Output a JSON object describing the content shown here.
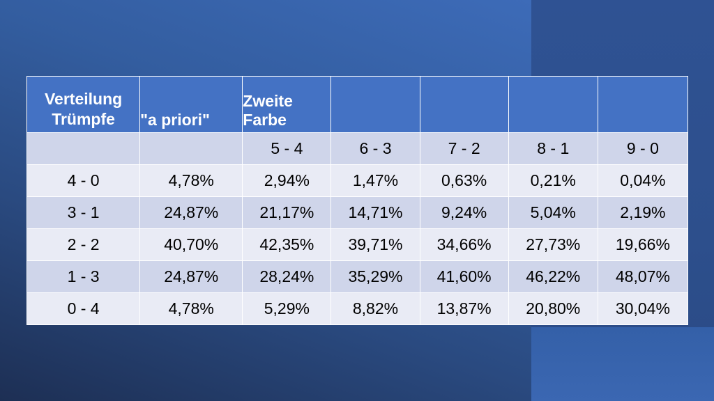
{
  "table": {
    "header": {
      "col0_line1": "Verteilung",
      "col0_line2": "Trümpfe",
      "col1": "\"a priori\"",
      "col2": "Zweite Farbe"
    },
    "subheader": [
      "",
      "",
      "5 - 4",
      "6 - 3",
      "7 - 2",
      "8 - 1",
      "9 - 0"
    ],
    "rows": [
      [
        "4 - 0",
        "4,78%",
        "2,94%",
        "1,47%",
        "0,63%",
        "0,21%",
        "0,04%"
      ],
      [
        "3 - 1",
        "24,87%",
        "21,17%",
        "14,71%",
        "9,24%",
        "5,04%",
        "2,19%"
      ],
      [
        "2 - 2",
        "40,70%",
        "42,35%",
        "39,71%",
        "34,66%",
        "27,73%",
        "19,66%"
      ],
      [
        "1 - 3",
        "24,87%",
        "28,24%",
        "35,29%",
        "41,60%",
        "46,22%",
        "48,07%"
      ],
      [
        "0 - 4",
        "4,78%",
        "5,29%",
        "8,82%",
        "13,87%",
        "20,80%",
        "30,04%"
      ]
    ]
  },
  "colors": {
    "header_bg": "#4472c4",
    "band_dark": "#cfd5ea",
    "band_light": "#e9ebf5",
    "slide_bg": "#2b4c86"
  }
}
